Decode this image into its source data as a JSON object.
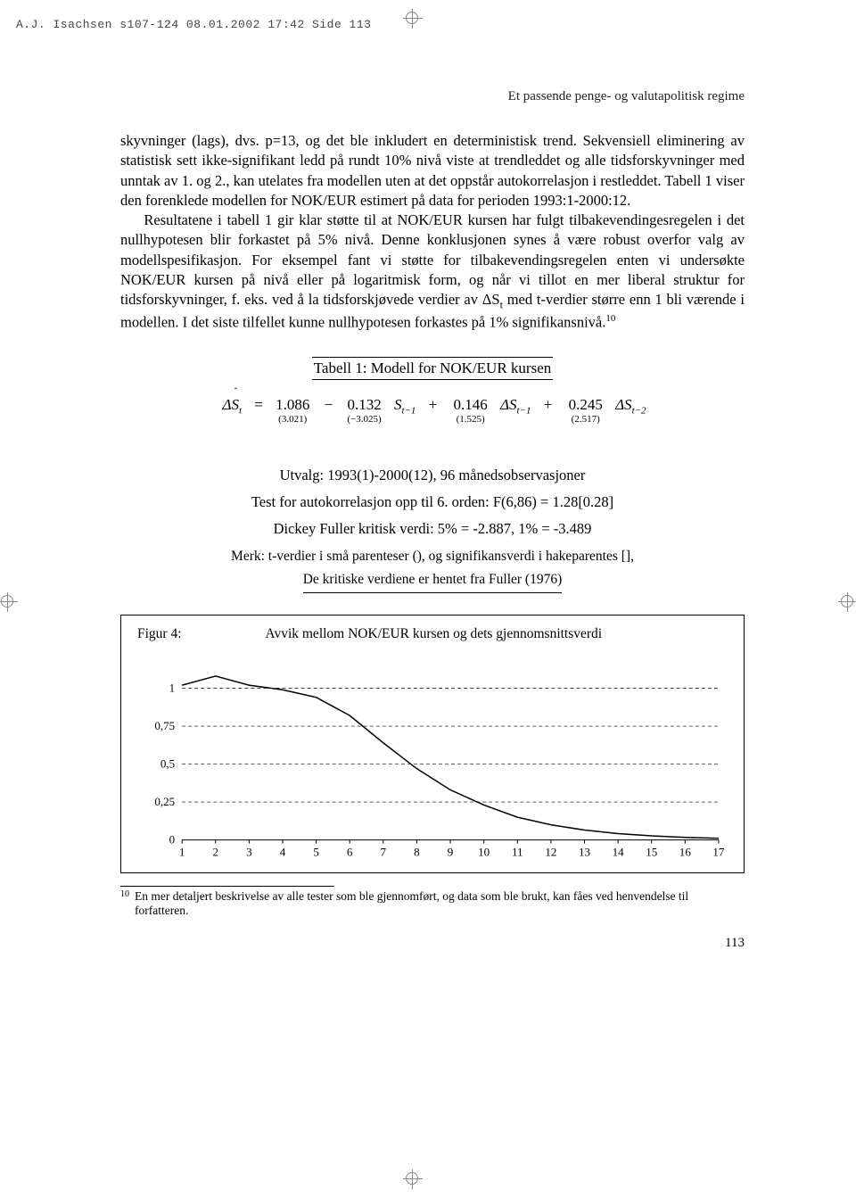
{
  "header_line": "A.J. Isachsen s107-124  08.01.2002 17:42  Side 113",
  "running_head": "Et passende penge- og valutapolitisk regime",
  "body": {
    "p1": "skyvninger (lags), dvs. p=13, og det ble inkludert en deterministisk trend. Sekvensiell eliminering av statistisk sett ikke-signifikant ledd på rundt 10% nivå viste at trendleddet og alle tidsforskyvninger med unntak av 1. og 2., kan utelates fra modellen uten at det oppstår autokorrelasjon i restleddet. Tabell 1 viser den forenklede modellen for NOK/EUR estimert på data for perioden 1993:1-2000:12.",
    "p2a": "Resultatene i tabell 1 gir klar støtte til at NOK/EUR kursen har fulgt tilbakevendingesregelen i det nullhypotesen blir forkastet på 5% nivå. Denne konklusjonen synes å være robust overfor valg av modellspesifikasjon. For eksempel fant vi støtte for tilbakevendingsregelen enten vi undersøkte NOK/EUR kursen på nivå eller på logaritmisk form, og når vi tillot en mer liberal struktur for tidsforskyvninger, f. eks. ved å la tidsforskjøvede verdier av ΔS",
    "p2sub": "t",
    "p2b": " med t-verdier større enn 1 bli værende i modellen. I det siste tilfellet kunne nullhypotesen forkastes på 1% signifikansnivå.",
    "p2sup": "10"
  },
  "table": {
    "title": "Tabell 1: Modell for NOK/EUR kursen",
    "eq": {
      "lhs": "ΔŜ",
      "lhs_sub": "t",
      "c1": "1.086",
      "t1": "(3.021)",
      "c2": "0.132",
      "t2": "(−3.025)",
      "v2": "S",
      "v2sub": "t−1",
      "c3": "0.146",
      "t3": "(1.525)",
      "v3": "ΔS",
      "v3sub": "t−1",
      "c4": "0.245",
      "t4": "(2.517)",
      "v4": "ΔS",
      "v4sub": "t−2"
    },
    "line1": "Utvalg: 1993(1)-2000(12), 96 månedsobservasjoner",
    "line2": "Test for autokorrelasjon opp til 6. orden: F(6,86) = 1.28[0.28]",
    "line3": "Dickey Fuller kritisk verdi: 5% = -2.887,  1% = -3.489",
    "merk1": "Merk: t-verdier i små parenteser (), og signifikansverdi i hakeparentes [],",
    "merk2": "De kritiske verdiene er hentet fra Fuller (1976)"
  },
  "figure": {
    "label": "Figur 4:",
    "title": "Avvik mellom NOK/EUR kursen og dets gjennomsnittsverdi",
    "chart": {
      "type": "line",
      "background_color": "#ffffff",
      "line_color": "#000000",
      "line_width": 1.5,
      "grid_color": "#000000",
      "grid_dash": "4 3",
      "tick_fontsize": 13,
      "xlim": [
        1,
        17
      ],
      "ylim": [
        0,
        1.15
      ],
      "yticks": [
        0,
        0.25,
        0.5,
        0.75,
        1
      ],
      "yticklabels": [
        "0",
        "0,25",
        "0,5",
        "0,75",
        "1"
      ],
      "xticks": [
        1,
        2,
        3,
        4,
        5,
        6,
        7,
        8,
        9,
        10,
        11,
        12,
        13,
        14,
        15,
        16,
        17
      ],
      "xticklabels": [
        "1",
        "2",
        "3",
        "4",
        "5",
        "6",
        "7",
        "8",
        "9",
        "10",
        "11",
        "12",
        "13",
        "14",
        "15",
        "16",
        "17"
      ],
      "data": {
        "x": [
          1,
          2,
          3,
          4,
          5,
          6,
          7,
          8,
          9,
          10,
          11,
          12,
          13,
          14,
          15,
          16,
          17
        ],
        "y": [
          1.02,
          1.08,
          1.02,
          0.99,
          0.94,
          0.82,
          0.64,
          0.47,
          0.33,
          0.23,
          0.15,
          0.1,
          0.065,
          0.042,
          0.027,
          0.017,
          0.011
        ]
      }
    }
  },
  "footnote": {
    "num": "10",
    "text": "En mer detaljert beskrivelse av alle tester som ble gjennomført, og data som ble brukt, kan fåes ved henvendelse til forfatteren."
  },
  "page_number": "113"
}
